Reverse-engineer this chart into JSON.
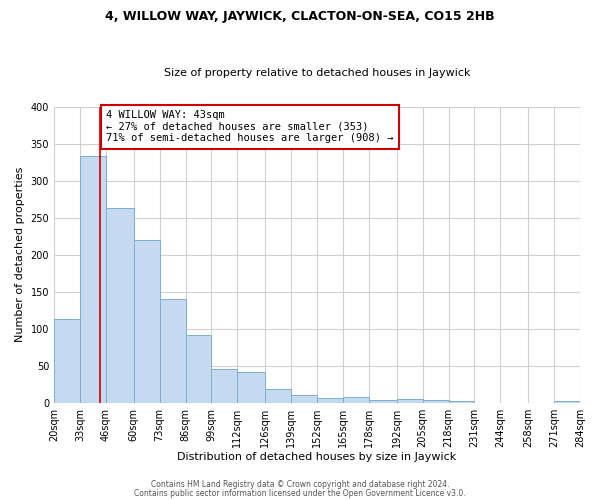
{
  "title": "4, WILLOW WAY, JAYWICK, CLACTON-ON-SEA, CO15 2HB",
  "subtitle": "Size of property relative to detached houses in Jaywick",
  "xlabel": "Distribution of detached houses by size in Jaywick",
  "ylabel": "Number of detached properties",
  "bin_edges": [
    20,
    33,
    46,
    60,
    73,
    86,
    99,
    112,
    126,
    139,
    152,
    165,
    178,
    192,
    205,
    218,
    231,
    244,
    258,
    271,
    284
  ],
  "bar_heights": [
    113,
    333,
    263,
    220,
    140,
    91,
    45,
    42,
    18,
    10,
    6,
    8,
    4,
    5,
    3,
    2,
    0,
    0,
    0,
    2
  ],
  "bar_color": "#c5d9f0",
  "bar_edge_color": "#7bafd4",
  "property_size": 43,
  "vline_color": "#cc0000",
  "annotation_line1": "4 WILLOW WAY: 43sqm",
  "annotation_line2": "← 27% of detached houses are smaller (353)",
  "annotation_line3": "71% of semi-detached houses are larger (908) →",
  "annotation_box_color": "white",
  "annotation_box_edge_color": "#cc0000",
  "ylim": [
    0,
    400
  ],
  "yticks": [
    0,
    50,
    100,
    150,
    200,
    250,
    300,
    350,
    400
  ],
  "footer_line1": "Contains HM Land Registry data © Crown copyright and database right 2024.",
  "footer_line2": "Contains public sector information licensed under the Open Government Licence v3.0.",
  "background_color": "#ffffff",
  "grid_color": "#d0d0d0",
  "title_fontsize": 9,
  "subtitle_fontsize": 8,
  "axis_label_fontsize": 8,
  "tick_fontsize": 7,
  "annotation_fontsize": 7.5,
  "footer_fontsize": 5.5
}
